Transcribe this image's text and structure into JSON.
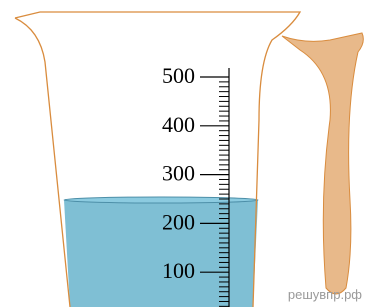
{
  "scale": {
    "labels": [
      "500",
      "400",
      "300",
      "200",
      "100"
    ]
  },
  "watermark": "решувпр.рф"
}
